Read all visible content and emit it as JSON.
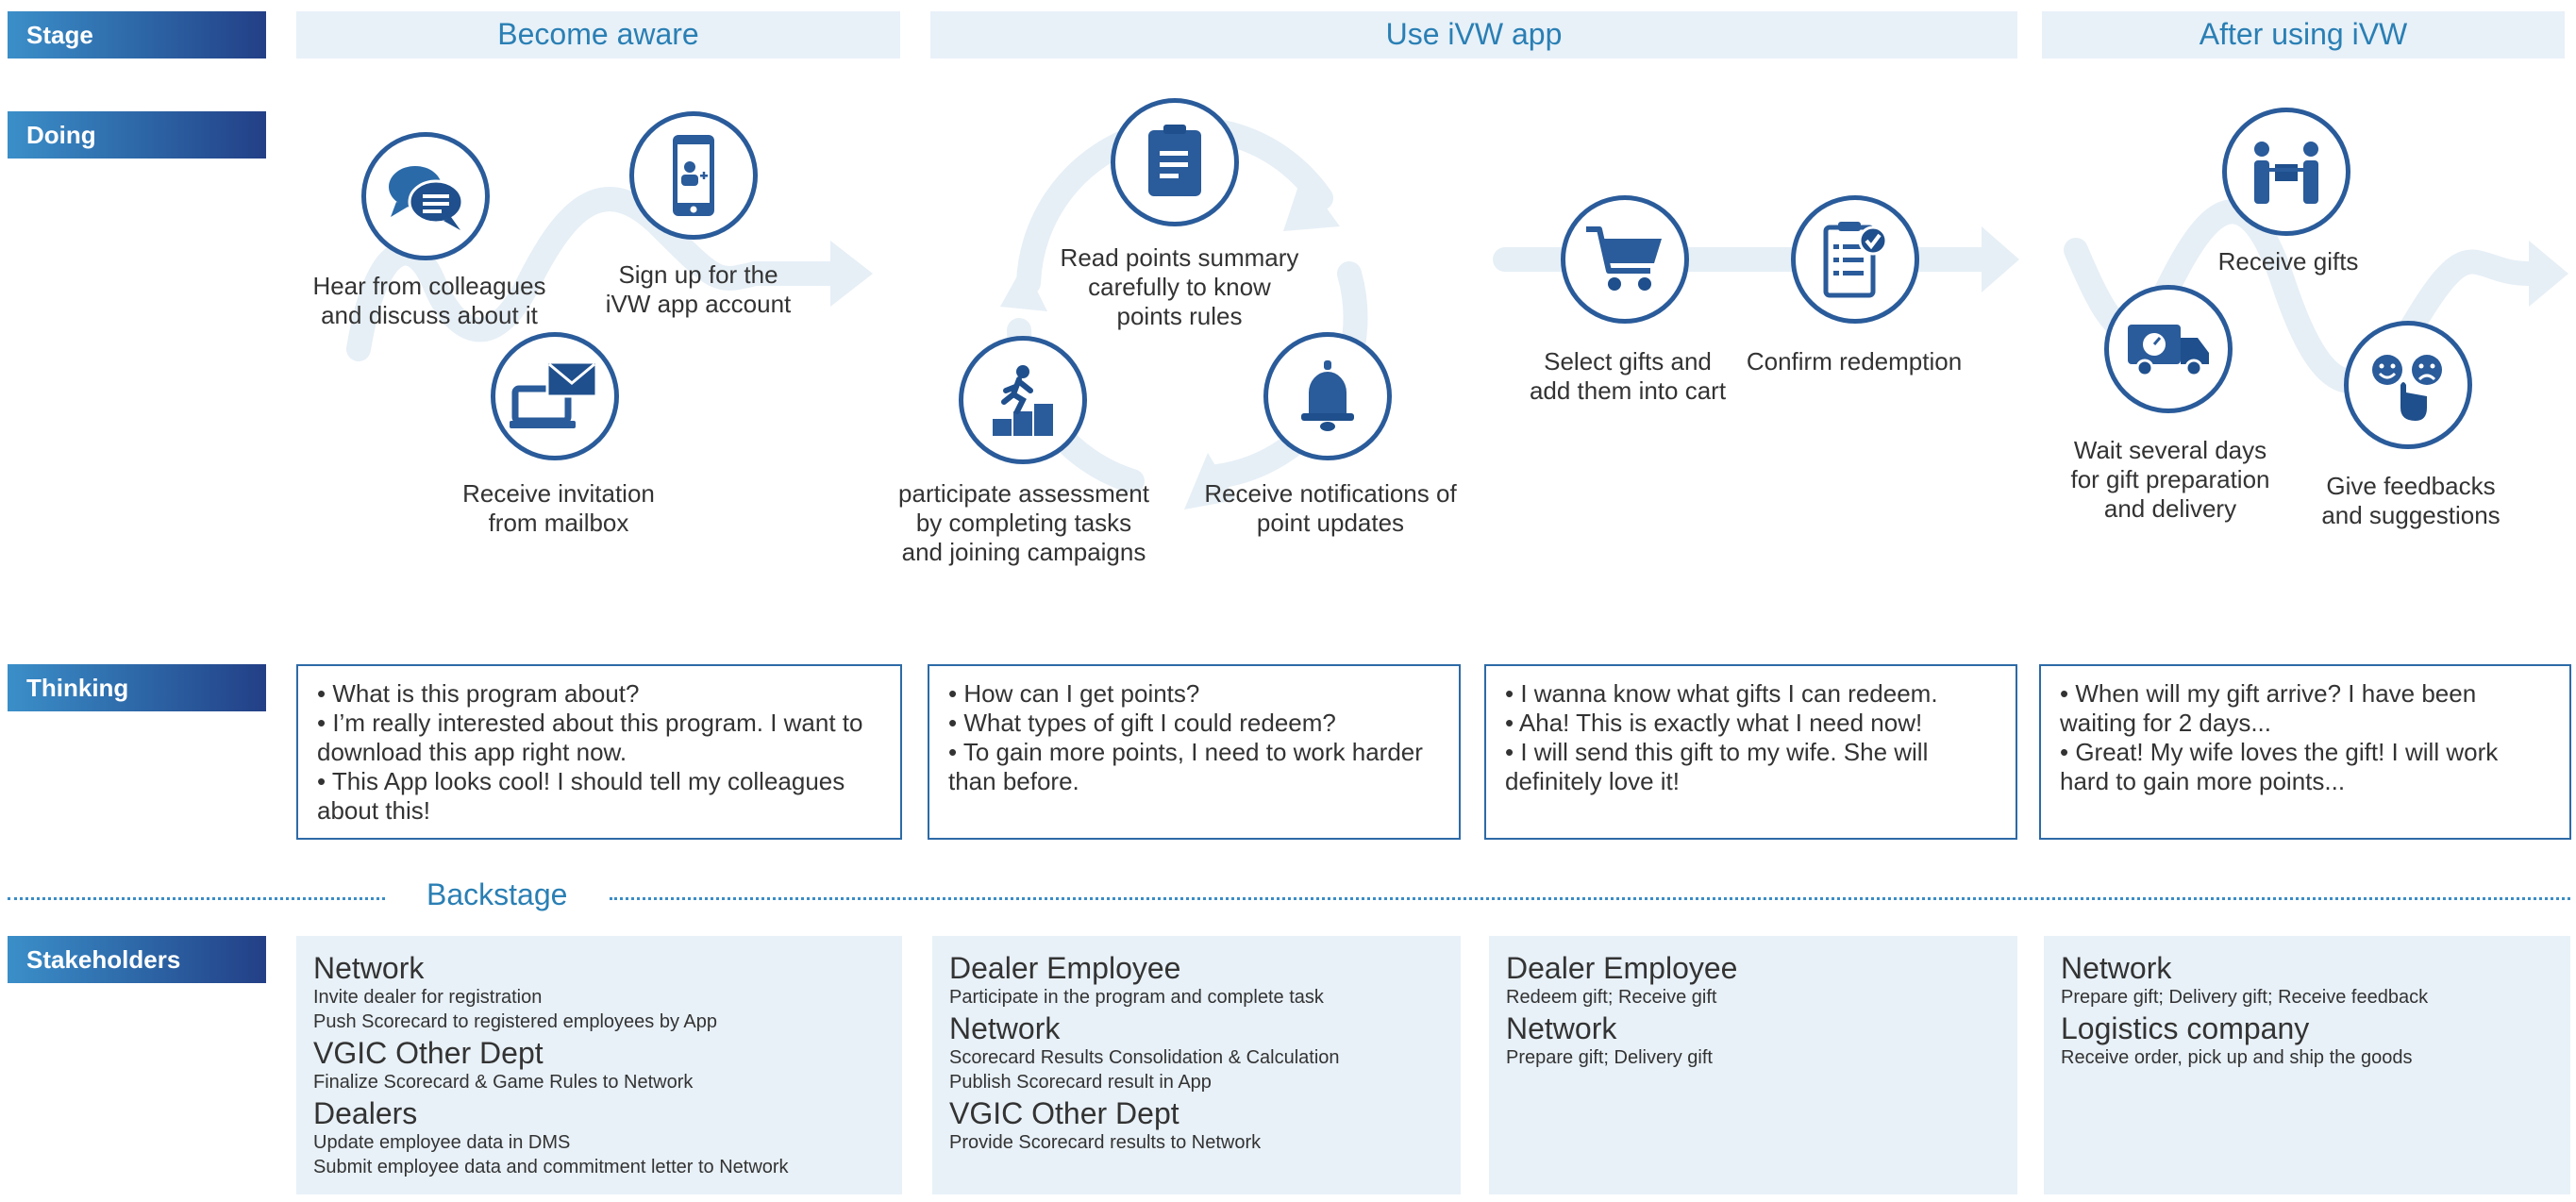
{
  "labels": {
    "stage": "Stage",
    "doing": "Doing",
    "thinking": "Thinking",
    "backstage": "Backstage",
    "stakeholders": "Stakeholders"
  },
  "stages": [
    "Become aware",
    "Use iVW app",
    "After using iVW"
  ],
  "doing": {
    "aware": [
      {
        "icon": "chat-bubbles-icon",
        "lines": [
          "Hear from colleagues",
          "and discuss about it"
        ]
      },
      {
        "icon": "smartphone-add-user-icon",
        "lines": [
          "Sign up for the",
          "iVW app account"
        ]
      },
      {
        "icon": "laptop-envelope-icon",
        "lines": [
          "Receive invitation",
          "from mailbox"
        ]
      }
    ],
    "use": [
      {
        "icon": "document-icon",
        "lines": [
          "Read points summary",
          "carefully to know",
          "points rules"
        ]
      },
      {
        "icon": "runner-steps-icon",
        "lines": [
          "participate assessment",
          "by completing tasks",
          "and joining campaigns"
        ]
      },
      {
        "icon": "bell-icon",
        "lines": [
          "Receive notifications of",
          "point updates"
        ]
      },
      {
        "icon": "shopping-cart-icon",
        "lines": [
          "Select gifts and",
          "add them into cart"
        ]
      },
      {
        "icon": "clipboard-check-icon",
        "lines": [
          "Confirm redemption"
        ]
      }
    ],
    "after": [
      {
        "icon": "gift-handover-icon",
        "lines": [
          "Receive gifts"
        ]
      },
      {
        "icon": "delivery-truck-icon",
        "lines": [
          "Wait several days",
          "for gift preparation",
          "and delivery"
        ]
      },
      {
        "icon": "feedback-faces-icon",
        "lines": [
          "Give feedbacks",
          "and suggestions"
        ]
      }
    ]
  },
  "thinking": [
    [
      "• What is this program about?",
      "• I’m really interested about this program. I want to download this app right now.",
      "• This App looks cool! I should tell my colleagues about this!"
    ],
    [
      "• How can I get points?",
      "• What types of gift I could redeem?",
      "• To gain more points, I need to work harder than before."
    ],
    [
      "• I wanna know what gifts I can redeem.",
      "• Aha! This is exactly what I need now!",
      "• I will send this gift to my wife. She will definitely love it!"
    ],
    [
      "• When will my gift arrive? I have been waiting for 2 days...",
      "• Great! My wife loves the gift! I will work hard to gain more points..."
    ]
  ],
  "stakeholders": [
    [
      {
        "name": "Network",
        "details": [
          "Invite dealer for registration",
          "Push Scorecard to registered employees by App"
        ]
      },
      {
        "name": "VGIC Other Dept",
        "details": [
          "Finalize Scorecard & Game Rules to Network"
        ]
      },
      {
        "name": "Dealers",
        "details": [
          "Update employee data in DMS",
          "Submit employee data and commitment letter to Network"
        ]
      }
    ],
    [
      {
        "name": "Dealer Employee",
        "details": [
          "Participate in the program and complete task"
        ]
      },
      {
        "name": "Network",
        "details": [
          "Scorecard Results Consolidation & Calculation",
          "Publish Scorecard result in App"
        ]
      },
      {
        "name": "VGIC Other Dept",
        "details": [
          "Provide Scorecard results to Network"
        ]
      }
    ],
    [
      {
        "name": "Dealer Employee",
        "details": [
          "Redeem gift; Receive gift"
        ]
      },
      {
        "name": "Network",
        "details": [
          "Prepare gift; Delivery gift"
        ]
      }
    ],
    [
      {
        "name": "Network",
        "details": [
          "Prepare gift; Delivery gift; Receive feedback"
        ]
      },
      {
        "name": "Logistics company",
        "details": [
          "Receive order, pick up and ship the goods"
        ]
      }
    ]
  ],
  "colors": {
    "accent": "#2a7fb4",
    "circle_border": "#2a5b9a",
    "panel": "#e8f1f8",
    "arrow": "#e6eff6"
  }
}
